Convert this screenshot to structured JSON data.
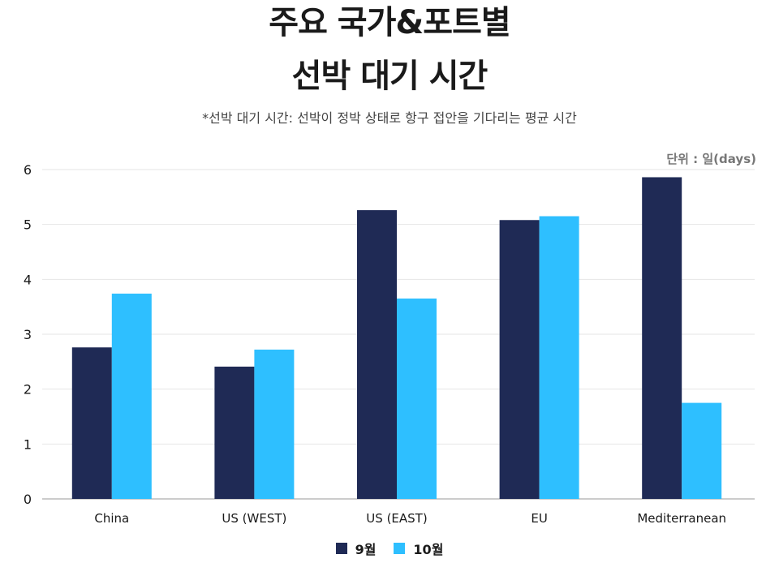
{
  "chart_data": {
    "type": "bar",
    "title_line1": "주요 국가&포트별",
    "title_line2": "선박 대기 시간",
    "subtitle": "*선박 대기 시간: 선박이 정박 상태로 항구 접안을 기다리는 평균 시간",
    "unit_label": "단위 : 일(days)",
    "categories": [
      "China",
      "US (WEST)",
      "US (EAST)",
      "EU",
      "Mediterranean"
    ],
    "series": [
      {
        "name": "9월",
        "color": "#1f2a55",
        "values": [
          2.76,
          2.41,
          5.26,
          5.08,
          5.86
        ]
      },
      {
        "name": "10월",
        "color": "#2ebfff",
        "values": [
          3.74,
          2.72,
          3.65,
          5.15,
          1.75
        ]
      }
    ],
    "ylim": [
      0,
      6
    ],
    "yticks": [
      0,
      1,
      2,
      3,
      4,
      5,
      6
    ],
    "grid": true,
    "legend_position": "bottom"
  }
}
